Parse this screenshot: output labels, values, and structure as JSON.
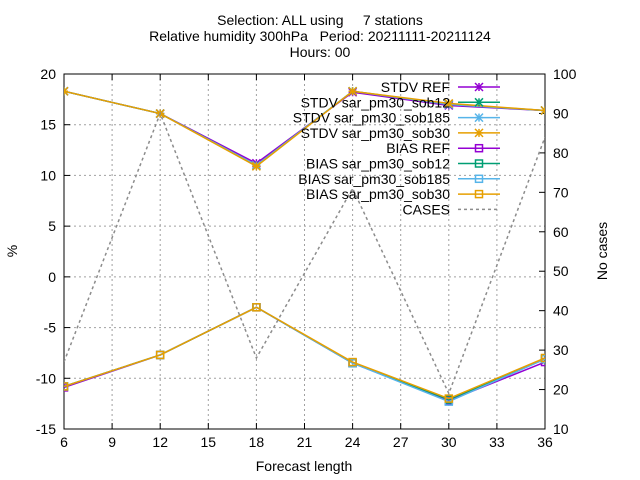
{
  "chart_data": {
    "type": "line",
    "title_lines": [
      "Selection: ALL using     7 stations",
      "Relative humidity 300hPa   Period: 20211111-20211124",
      "Hours: 00"
    ],
    "xlabel": "Forecast length",
    "ylabel": "%",
    "y2label": "No cases",
    "x": [
      6,
      12,
      18,
      24,
      30,
      36
    ],
    "xlim": [
      6,
      36
    ],
    "xticks": [
      6,
      9,
      12,
      15,
      18,
      21,
      24,
      27,
      30,
      33,
      36
    ],
    "ylim": [
      -15,
      20
    ],
    "yticks": [
      -15,
      -10,
      -5,
      0,
      5,
      10,
      15,
      20
    ],
    "y2lim": [
      10,
      100
    ],
    "y2ticks": [
      10,
      20,
      30,
      40,
      50,
      60,
      70,
      80,
      90,
      100
    ],
    "grid": true,
    "legend_position": "top-right",
    "series": [
      {
        "name": "STDV REF",
        "color": "#9400d3",
        "marker": "x-star",
        "axis": "y1",
        "values": [
          18.3,
          16.1,
          11.2,
          18.2,
          16.9,
          16.4
        ]
      },
      {
        "name": "STDV sar_pm30_sob12",
        "color": "#009e73",
        "marker": "x-star",
        "axis": "y1",
        "values": [
          18.3,
          16.1,
          11.0,
          18.3,
          17.0,
          16.4
        ]
      },
      {
        "name": "STDV sar_pm30_sob185",
        "color": "#56b4e9",
        "marker": "x-star",
        "axis": "y1",
        "values": [
          18.3,
          16.1,
          11.0,
          18.3,
          17.0,
          16.4
        ]
      },
      {
        "name": "STDV sar_pm30_sob30",
        "color": "#e69f00",
        "marker": "x-star",
        "axis": "y1",
        "values": [
          18.3,
          16.1,
          10.9,
          18.3,
          17.1,
          16.4
        ]
      },
      {
        "name": "BIAS REF",
        "color": "#9400d3",
        "marker": "square",
        "axis": "y1",
        "values": [
          -10.9,
          -7.7,
          -3.0,
          -8.5,
          -12.2,
          -8.4
        ]
      },
      {
        "name": "BIAS sar_pm30_sob12",
        "color": "#009e73",
        "marker": "square",
        "axis": "y1",
        "values": [
          -10.8,
          -7.7,
          -3.0,
          -8.5,
          -12.1,
          -8.1
        ]
      },
      {
        "name": "BIAS sar_pm30_sob185",
        "color": "#56b4e9",
        "marker": "square",
        "axis": "y1",
        "values": [
          -10.8,
          -7.7,
          -3.0,
          -8.5,
          -12.3,
          -8.1
        ]
      },
      {
        "name": "BIAS sar_pm30_sob30",
        "color": "#e69f00",
        "marker": "square",
        "axis": "y1",
        "values": [
          -10.8,
          -7.7,
          -3.0,
          -8.4,
          -12.0,
          -8.0
        ]
      },
      {
        "name": "CASES",
        "color": "#8c8c8c",
        "marker": "none",
        "dashed": true,
        "axis": "y2",
        "values": [
          27,
          90,
          28,
          71,
          19,
          84
        ]
      }
    ]
  }
}
